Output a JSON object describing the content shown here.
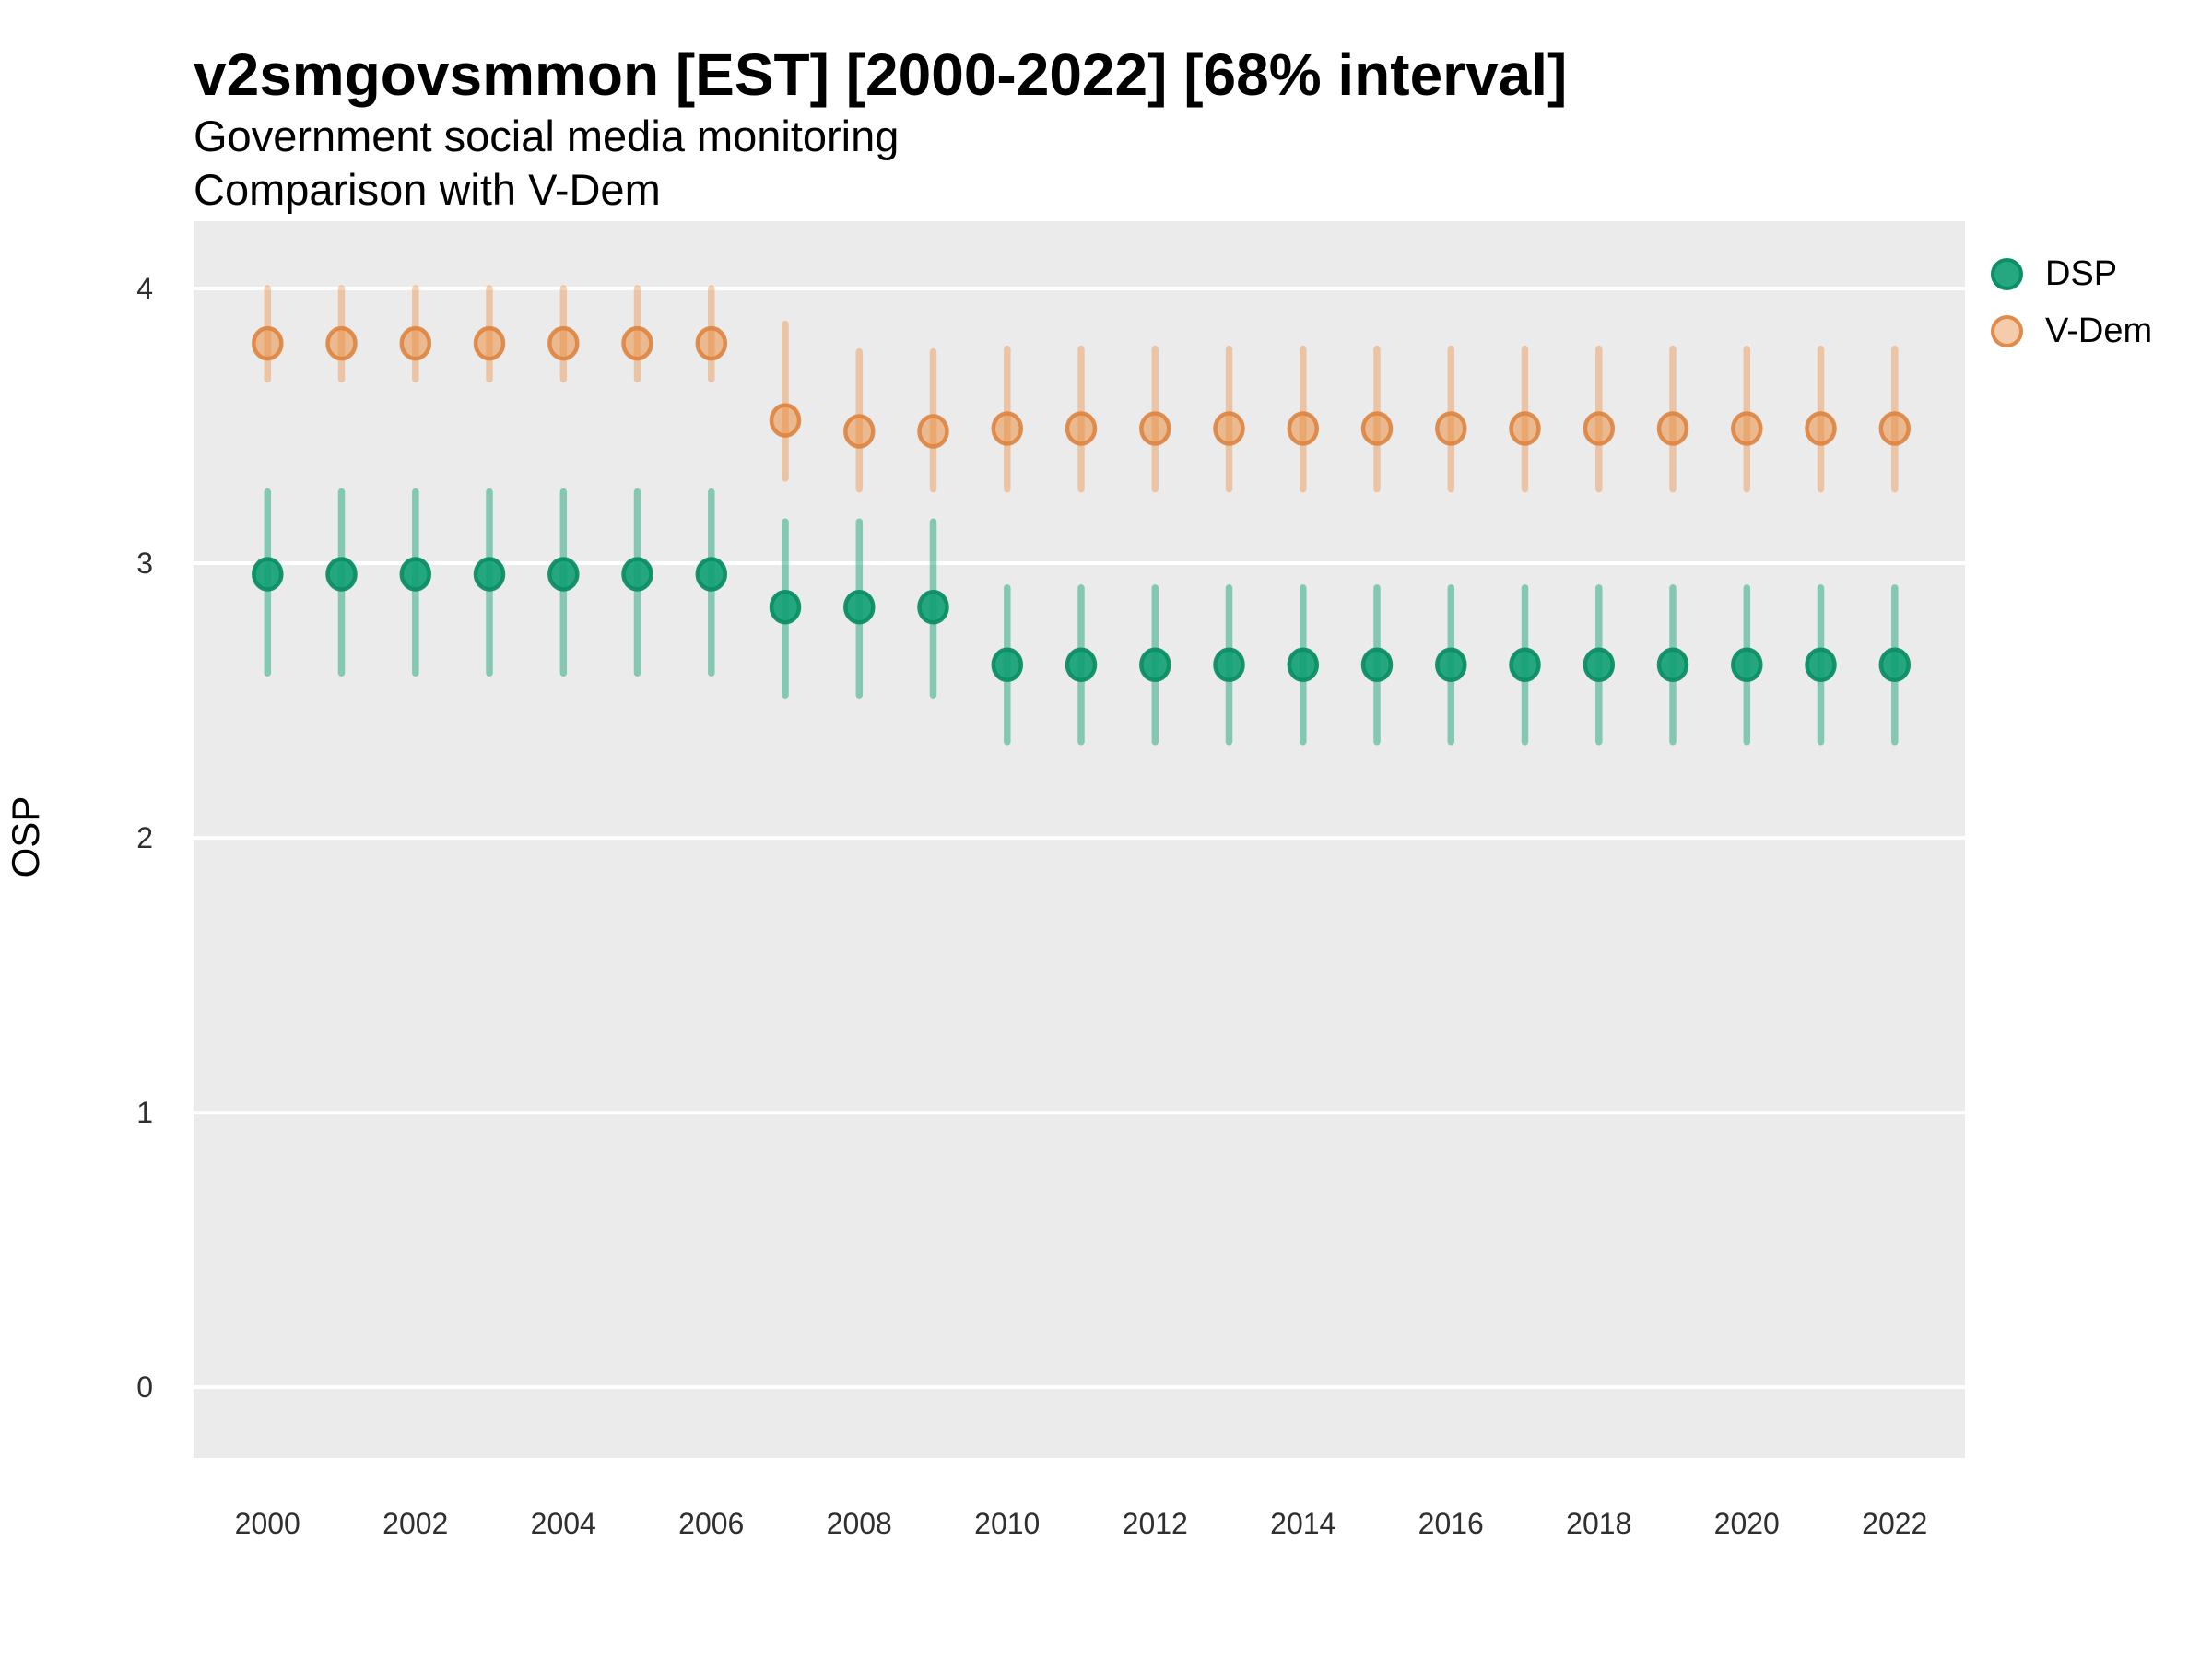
{
  "chart_data": {
    "type": "pointrange",
    "title": "v2smgovsmmon [EST] [2000-2022] [68% interval]",
    "subtitle_line1": "Government social media monitoring",
    "subtitle_line2": "Comparison with V-Dem",
    "ylabel": "OSP",
    "xlabel": "",
    "interval_level": "68%",
    "legend_position": "right-top",
    "grid": "horizontal-major-only",
    "panel_bg": "#EBEBEB",
    "grid_color": "#FFFFFF",
    "ylim": [
      -0.258,
      4.245
    ],
    "xlim": [
      1999.0,
      2022.95
    ],
    "y_ticks": [
      0,
      1,
      2,
      3,
      4
    ],
    "y_tick_labels": [
      "0",
      "1",
      "2",
      "3",
      "4"
    ],
    "x_tick_years": [
      2000,
      2002,
      2004,
      2006,
      2008,
      2010,
      2012,
      2014,
      2016,
      2018,
      2020,
      2022
    ],
    "x_tick_labels": [
      "2000",
      "2002",
      "2004",
      "2006",
      "2008",
      "2010",
      "2012",
      "2014",
      "2016",
      "2018",
      "2020",
      "2022"
    ],
    "x": [
      2000,
      2001,
      2002,
      2003,
      2004,
      2005,
      2006,
      2007,
      2008,
      2009,
      2010,
      2011,
      2012,
      2013,
      2014,
      2015,
      2016,
      2017,
      2018,
      2019,
      2020,
      2021,
      2022
    ],
    "series": [
      {
        "name": "DSP",
        "marker": {
          "fill": "#12A075",
          "fill_alpha": 0.92,
          "stroke": "#0D8E65",
          "stroke_alpha": 0.95,
          "bar_alpha": 0.48
        },
        "est": [
          2.96,
          2.96,
          2.96,
          2.96,
          2.96,
          2.96,
          2.96,
          2.84,
          2.84,
          2.84,
          2.63,
          2.63,
          2.63,
          2.63,
          2.63,
          2.63,
          2.63,
          2.63,
          2.63,
          2.63,
          2.63,
          2.63,
          2.63
        ],
        "lo": [
          2.6,
          2.6,
          2.6,
          2.6,
          2.6,
          2.6,
          2.6,
          2.52,
          2.52,
          2.52,
          2.35,
          2.35,
          2.35,
          2.35,
          2.35,
          2.35,
          2.35,
          2.35,
          2.35,
          2.35,
          2.35,
          2.35,
          2.35
        ],
        "hi": [
          3.26,
          3.26,
          3.26,
          3.26,
          3.26,
          3.26,
          3.26,
          3.15,
          3.15,
          3.15,
          2.91,
          2.91,
          2.91,
          2.91,
          2.91,
          2.91,
          2.91,
          2.91,
          2.91,
          2.91,
          2.91,
          2.91,
          2.91
        ]
      },
      {
        "name": "V-Dem",
        "marker": {
          "fill": "#E98F44",
          "fill_alpha": 0.55,
          "stroke": "#DE8440",
          "stroke_alpha": 0.9,
          "bar_alpha": 0.42
        },
        "est": [
          3.8,
          3.8,
          3.8,
          3.8,
          3.8,
          3.8,
          3.8,
          3.52,
          3.48,
          3.48,
          3.49,
          3.49,
          3.49,
          3.49,
          3.49,
          3.49,
          3.49,
          3.49,
          3.49,
          3.49,
          3.49,
          3.49,
          3.49
        ],
        "lo": [
          3.67,
          3.67,
          3.67,
          3.67,
          3.67,
          3.67,
          3.67,
          3.31,
          3.27,
          3.27,
          3.27,
          3.27,
          3.27,
          3.27,
          3.27,
          3.27,
          3.27,
          3.27,
          3.27,
          3.27,
          3.27,
          3.27,
          3.27
        ],
        "hi": [
          4.0,
          4.0,
          4.0,
          4.0,
          4.0,
          4.0,
          4.0,
          3.87,
          3.77,
          3.77,
          3.78,
          3.78,
          3.78,
          3.78,
          3.78,
          3.78,
          3.78,
          3.78,
          3.78,
          3.78,
          3.78,
          3.78,
          3.78
        ]
      }
    ]
  }
}
